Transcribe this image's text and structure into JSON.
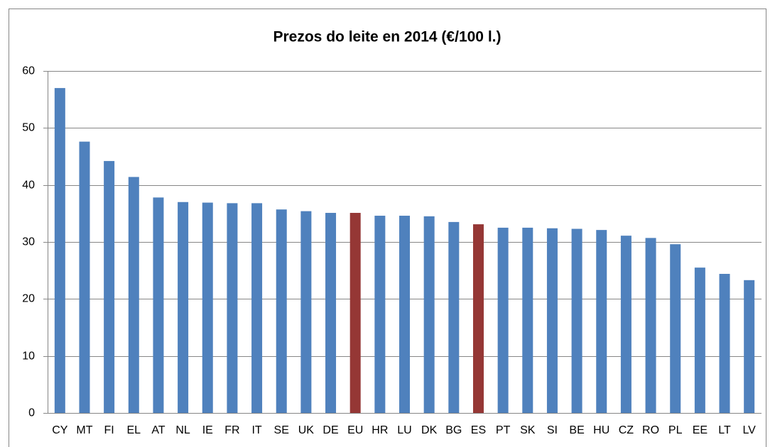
{
  "chart_data": {
    "type": "bar",
    "title": "Prezos do leite en 2014 (€/100 l.)",
    "categories": [
      "CY",
      "MT",
      "FI",
      "EL",
      "AT",
      "NL",
      "IE",
      "FR",
      "IT",
      "SE",
      "UK",
      "DE",
      "EU",
      "HR",
      "LU",
      "DK",
      "BG",
      "ES",
      "PT",
      "SK",
      "SI",
      "BE",
      "HU",
      "CZ",
      "RO",
      "PL",
      "EE",
      "LT",
      "LV"
    ],
    "values": [
      57.0,
      47.6,
      44.2,
      41.4,
      37.8,
      37.0,
      36.9,
      36.8,
      36.8,
      35.7,
      35.4,
      35.1,
      35.1,
      34.6,
      34.6,
      34.5,
      33.5,
      33.1,
      32.5,
      32.5,
      32.4,
      32.3,
      32.1,
      31.1,
      30.7,
      29.6,
      25.5,
      24.4,
      23.3
    ],
    "colors": [
      "#4f81bd",
      "#4f81bd",
      "#4f81bd",
      "#4f81bd",
      "#4f81bd",
      "#4f81bd",
      "#4f81bd",
      "#4f81bd",
      "#4f81bd",
      "#4f81bd",
      "#4f81bd",
      "#4f81bd",
      "#953735",
      "#4f81bd",
      "#4f81bd",
      "#4f81bd",
      "#4f81bd",
      "#953735",
      "#4f81bd",
      "#4f81bd",
      "#4f81bd",
      "#4f81bd",
      "#4f81bd",
      "#4f81bd",
      "#4f81bd",
      "#4f81bd",
      "#4f81bd",
      "#4f81bd",
      "#4f81bd"
    ],
    "ylim": [
      0,
      60
    ],
    "yticks": [
      0,
      10,
      20,
      30,
      40,
      50,
      60
    ],
    "grid": true
  }
}
